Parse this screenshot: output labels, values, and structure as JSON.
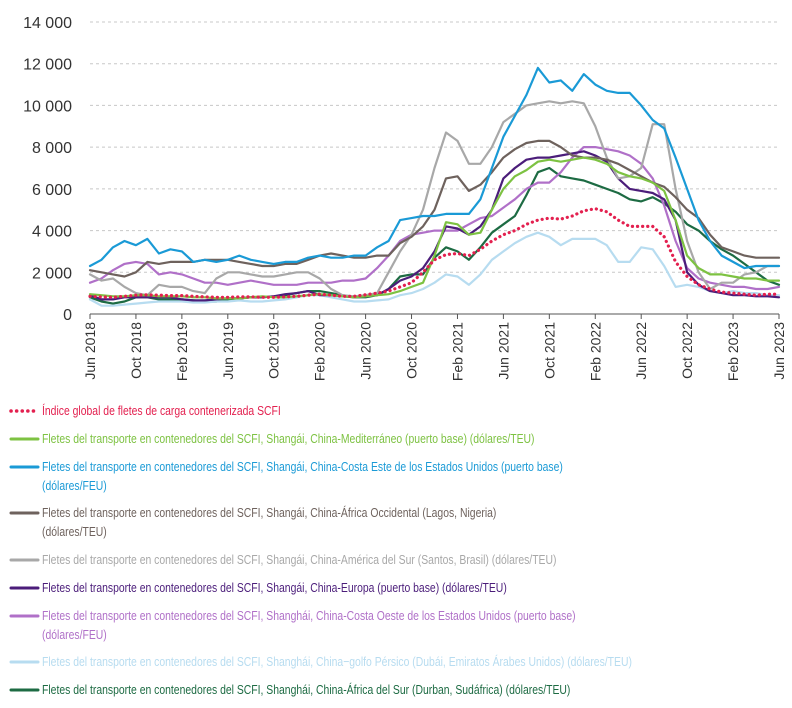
{
  "chart_data": {
    "type": "line",
    "categories": [
      "Jun 2018",
      null,
      null,
      null,
      "Oct 2018",
      null,
      null,
      null,
      "Feb 2019",
      null,
      null,
      null,
      "Jun 2019",
      null,
      null,
      null,
      "Oct 2019",
      null,
      null,
      null,
      "Feb 2020",
      null,
      null,
      null,
      "Jun 2020",
      null,
      null,
      null,
      "Oct 2020",
      null,
      null,
      null,
      "Feb 2021",
      null,
      null,
      null,
      "Jun 2021",
      null,
      null,
      null,
      "Oct 2021",
      null,
      null,
      null,
      "Feb 2022",
      null,
      null,
      null,
      "Jun 2022",
      null,
      null,
      null,
      "Oct 2022",
      null,
      null,
      null,
      "Feb 2023",
      null,
      null,
      null,
      "Jun 2023"
    ],
    "ylim": [
      0,
      14000
    ],
    "yticks": [
      0,
      {
        "value": 2000,
        "label": "2 000"
      },
      {
        "value": 4000,
        "label": "4 000"
      },
      {
        "value": 6000,
        "label": "6 000"
      },
      {
        "value": 8000,
        "label": "8 000"
      },
      {
        "value": 10000,
        "label": "10 000"
      },
      {
        "value": 12000,
        "label": "12 000"
      },
      {
        "value": 14000,
        "label": "14 000"
      }
    ],
    "grid": true,
    "legend": "bottom",
    "series": [
      {
        "name": "Índice global de fletes de carga contenerizada SCFI",
        "color": "#e3204f",
        "dotted": true,
        "values": [
          850,
          820,
          800,
          850,
          900,
          920,
          900,
          880,
          880,
          850,
          820,
          800,
          800,
          820,
          820,
          800,
          800,
          820,
          850,
          900,
          950,
          900,
          850,
          850,
          920,
          1000,
          1100,
          1300,
          1500,
          2000,
          2600,
          2850,
          2900,
          2800,
          3100,
          3500,
          3800,
          4000,
          4300,
          4500,
          4600,
          4550,
          4700,
          4950,
          5050,
          4900,
          4500,
          4200,
          4200,
          4200,
          3700,
          2500,
          1800,
          1400,
          1200,
          1050,
          1000,
          950,
          900,
          950,
          950
        ]
      },
      {
        "name": "Fletes del transporte en contenedores del SCFI, Shangái, China-Mediterráneo (puerto base) (dólares/TEU)",
        "color": "#7dc242",
        "values": [
          950,
          900,
          850,
          850,
          900,
          900,
          850,
          850,
          850,
          800,
          800,
          750,
          750,
          750,
          800,
          850,
          800,
          800,
          850,
          900,
          950,
          900,
          850,
          800,
          850,
          900,
          950,
          1100,
          1300,
          1500,
          2800,
          4400,
          4300,
          3800,
          3900,
          5000,
          6000,
          6600,
          6900,
          7300,
          7400,
          7300,
          7400,
          7500,
          7400,
          7200,
          6800,
          6600,
          6500,
          6300,
          5900,
          4500,
          2800,
          2200,
          1900,
          1900,
          1800,
          1700,
          1700,
          1600,
          1600
        ]
      },
      {
        "name": "Fletes del transporte en contenedores del SCFI, Shangái, China-Costa Este de los Estados Unidos (puerto base)\n(dólares/FEU)",
        "color": "#1a9ad6",
        "values": [
          2300,
          2600,
          3200,
          3500,
          3300,
          3600,
          2900,
          3100,
          3000,
          2500,
          2600,
          2500,
          2600,
          2800,
          2600,
          2500,
          2400,
          2500,
          2500,
          2700,
          2800,
          2700,
          2700,
          2800,
          2800,
          3200,
          3500,
          4500,
          4600,
          4700,
          4700,
          4800,
          4800,
          4800,
          5500,
          7000,
          8500,
          9500,
          10500,
          11800,
          11100,
          11200,
          10700,
          11500,
          11000,
          10700,
          10600,
          10600,
          10000,
          9300,
          8900,
          7500,
          6000,
          4500,
          3500,
          2800,
          2500,
          2200,
          2300,
          2300,
          2300
        ]
      },
      {
        "name": "Fletes del transporte en contenedores del SCFI, Shangái, China-África Occidental (Lagos, Nigeria)\n(dólares/TEU)",
        "color": "#6e625d",
        "values": [
          2100,
          2000,
          1900,
          1800,
          2000,
          2500,
          2400,
          2500,
          2500,
          2500,
          2600,
          2600,
          2600,
          2500,
          2400,
          2300,
          2300,
          2400,
          2400,
          2600,
          2800,
          2900,
          2800,
          2700,
          2700,
          2800,
          2800,
          3400,
          3700,
          4200,
          5000,
          6500,
          6600,
          5900,
          6200,
          6800,
          7500,
          7900,
          8200,
          8300,
          8300,
          8000,
          7600,
          7500,
          7500,
          7400,
          7200,
          6900,
          6600,
          6300,
          6100,
          5600,
          5000,
          4600,
          3800,
          3200,
          3000,
          2800,
          2700,
          2700,
          2700
        ]
      },
      {
        "name": "Fletes del transporte en contenedores del SCFI, Shangái, China-América del Sur (Santos, Brasil) (dólares/TEU)",
        "color": "#a8a8a8",
        "values": [
          1900,
          1600,
          1700,
          1300,
          1000,
          900,
          1400,
          1300,
          1300,
          1100,
          1000,
          1700,
          2000,
          2000,
          1900,
          1800,
          1800,
          1900,
          2000,
          2000,
          1700,
          1200,
          900,
          850,
          900,
          1000,
          2000,
          3000,
          3800,
          5000,
          7000,
          8700,
          8300,
          7200,
          7200,
          8000,
          9200,
          9600,
          10000,
          10100,
          10200,
          10100,
          10200,
          10100,
          9000,
          7500,
          6500,
          6600,
          7000,
          9100,
          9100,
          6000,
          3500,
          2000,
          1200,
          1500,
          1500,
          1900,
          2000,
          2300,
          2300
        ]
      },
      {
        "name": "Fletes del transporte en contenedores del SCFI, Shangái, China-Europa (puerto base) (dólares/TEU)",
        "color": "#4b1d7a",
        "values": [
          900,
          700,
          700,
          800,
          800,
          800,
          800,
          800,
          700,
          650,
          650,
          700,
          750,
          750,
          800,
          800,
          850,
          950,
          1000,
          1100,
          900,
          900,
          850,
          800,
          850,
          900,
          1200,
          1600,
          1800,
          2200,
          3000,
          4200,
          4100,
          3800,
          4200,
          5000,
          6500,
          7000,
          7400,
          7500,
          7500,
          7600,
          7700,
          7800,
          7600,
          7300,
          6500,
          6000,
          5900,
          5800,
          5500,
          4500,
          2000,
          1400,
          1100,
          1000,
          900,
          900,
          850,
          850,
          800
        ]
      },
      {
        "name": "Fletes del transporte en contenedores del SCFI, Shanghái, China-Costa Oeste de los Estados Unidos (puerto base) (dólares/FEU)",
        "color": "#b070c8",
        "values": [
          1500,
          1700,
          2100,
          2400,
          2500,
          2400,
          1900,
          2000,
          1900,
          1700,
          1500,
          1500,
          1400,
          1500,
          1600,
          1500,
          1400,
          1400,
          1400,
          1500,
          1500,
          1500,
          1600,
          1600,
          1700,
          2200,
          2800,
          3500,
          3800,
          3900,
          4000,
          4000,
          4000,
          4300,
          4600,
          4700,
          5100,
          5500,
          6000,
          6300,
          6300,
          6800,
          7500,
          8000,
          8000,
          7900,
          7800,
          7600,
          7200,
          6500,
          5200,
          3500,
          2200,
          1700,
          1500,
          1400,
          1300,
          1300,
          1200,
          1200,
          1300
        ]
      },
      {
        "name": "Fletes del transporte en contenedores del SCFI, Shanghái, China−golfo Pérsico (Dubái, Emiratos Árabes Unidos) (dólares/TEU)",
        "color": "#b7dcf0",
        "values": [
          700,
          400,
          400,
          450,
          500,
          550,
          600,
          600,
          600,
          550,
          550,
          600,
          600,
          650,
          600,
          600,
          650,
          700,
          800,
          900,
          900,
          800,
          700,
          600,
          600,
          650,
          700,
          900,
          1000,
          1200,
          1500,
          1900,
          1800,
          1400,
          1900,
          2600,
          3000,
          3400,
          3700,
          3900,
          3700,
          3300,
          3600,
          3600,
          3600,
          3300,
          2500,
          2500,
          3200,
          3100,
          2300,
          1300,
          1400,
          1300,
          1100,
          1000,
          1100,
          1000,
          1000,
          900,
          900
        ]
      },
      {
        "name": "Fletes del transporte en contenedores del SCFI, Shanghái, China-África del Sur (Durban, Sudáfrica) (dólares/TEU)",
        "color": "#1d6b43",
        "values": [
          800,
          600,
          500,
          600,
          800,
          800,
          700,
          700,
          700,
          650,
          600,
          600,
          700,
          750,
          800,
          800,
          850,
          900,
          1000,
          1100,
          1100,
          1000,
          900,
          800,
          800,
          900,
          1200,
          1800,
          1900,
          1900,
          2700,
          3200,
          3000,
          2600,
          3200,
          3900,
          4300,
          4700,
          5700,
          6800,
          7000,
          6600,
          6500,
          6400,
          6200,
          6000,
          5800,
          5500,
          5400,
          5600,
          5300,
          4900,
          4300,
          4000,
          3500,
          3100,
          2800,
          2400,
          2000,
          1600,
          1400
        ]
      }
    ]
  }
}
